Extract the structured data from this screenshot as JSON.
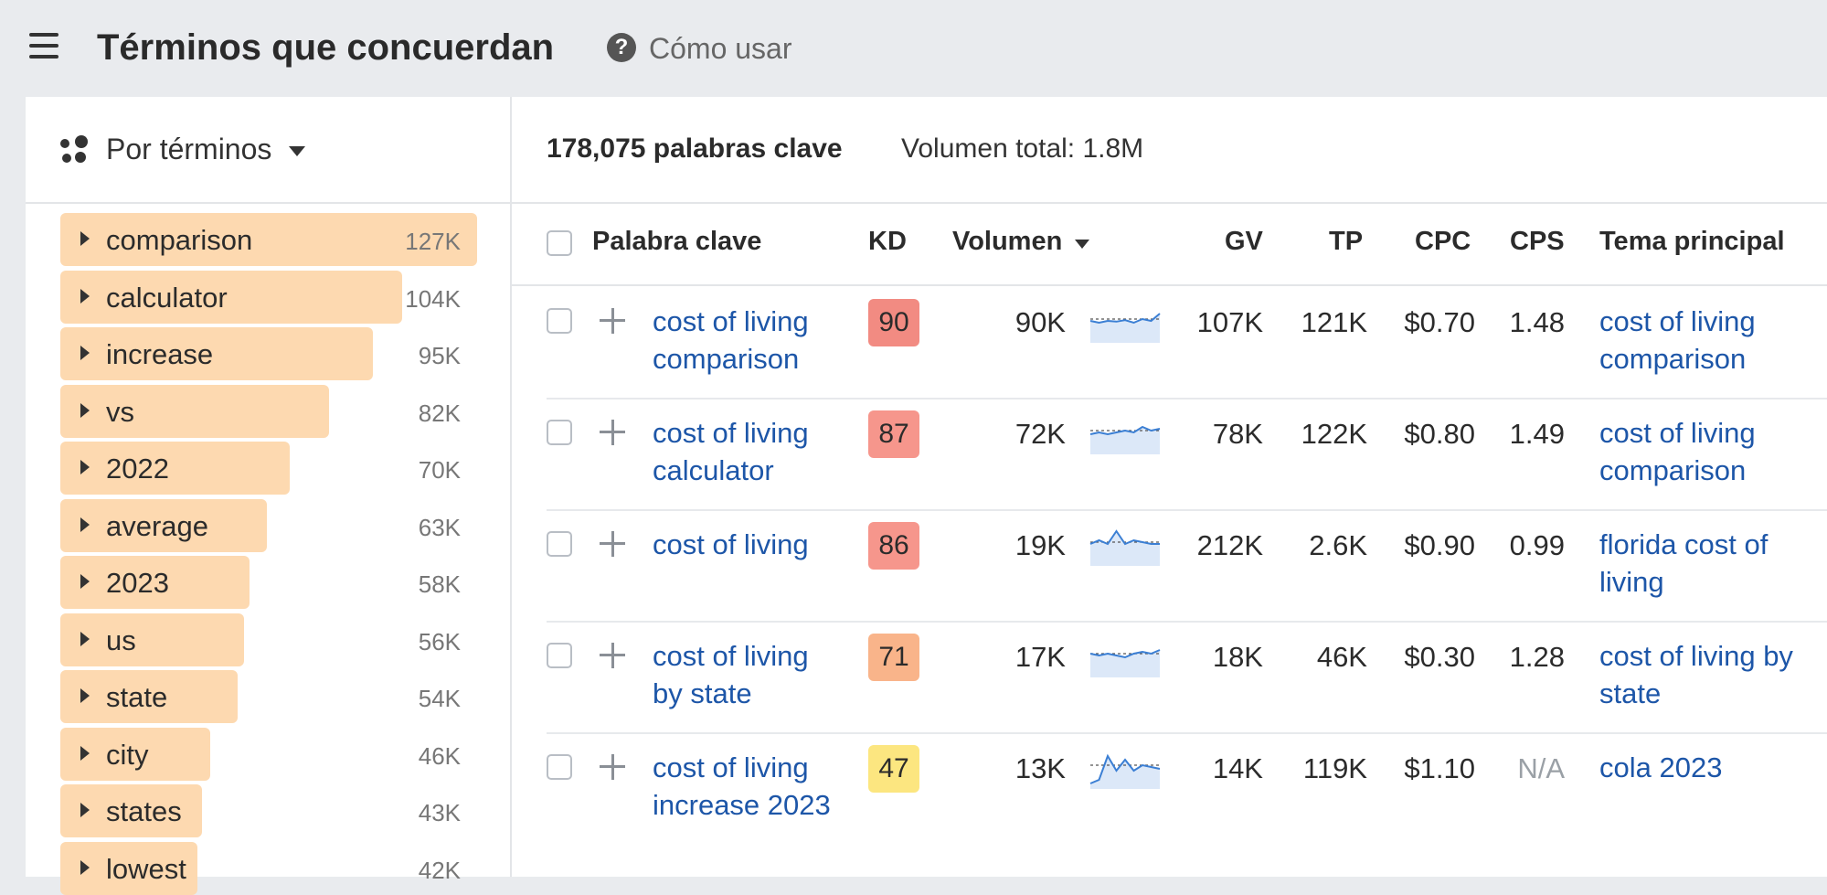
{
  "header": {
    "title": "Términos que concuerdan",
    "help_label": "Cómo usar"
  },
  "left_panel": {
    "group_by_label": "Por términos",
    "terms": [
      {
        "label": "comparison",
        "count": "127K",
        "fill": 1.0
      },
      {
        "label": "calculator",
        "count": "104K",
        "fill": 0.82
      },
      {
        "label": "increase",
        "count": "95K",
        "fill": 0.75
      },
      {
        "label": "vs",
        "count": "82K",
        "fill": 0.645
      },
      {
        "label": "2022",
        "count": "70K",
        "fill": 0.55
      },
      {
        "label": "average",
        "count": "63K",
        "fill": 0.495
      },
      {
        "label": "2023",
        "count": "58K",
        "fill": 0.455
      },
      {
        "label": "us",
        "count": "56K",
        "fill": 0.44
      },
      {
        "label": "state",
        "count": "54K",
        "fill": 0.425
      },
      {
        "label": "city",
        "count": "46K",
        "fill": 0.36
      },
      {
        "label": "states",
        "count": "43K",
        "fill": 0.34
      },
      {
        "label": "lowest",
        "count": "42K",
        "fill": 0.33
      }
    ]
  },
  "summary": {
    "keywords_count": "178,075 palabras clave",
    "total_volume": "Volumen total: 1.8M"
  },
  "table": {
    "headers": {
      "keyword": "Palabra clave",
      "kd": "KD",
      "volume": "Volumen",
      "gv": "GV",
      "tp": "TP",
      "cpc": "CPC",
      "cps": "CPS",
      "topic": "Tema principal"
    },
    "rows": [
      {
        "keyword": "cost of living comparison",
        "kd": "90",
        "kd_color": "#f28b82",
        "volume": "90K",
        "gv": "107K",
        "tp": "121K",
        "cpc": "$0.70",
        "cps": "1.48",
        "topic": "cost of living comparison",
        "trend": [
          0.5,
          0.55,
          0.5,
          0.52,
          0.48,
          0.55,
          0.45,
          0.5,
          0.3
        ]
      },
      {
        "keyword": "cost of living calculator",
        "kd": "87",
        "kd_color": "#f6968c",
        "volume": "72K",
        "gv": "78K",
        "tp": "122K",
        "cpc": "$0.80",
        "cps": "1.49",
        "topic": "cost of living comparison",
        "trend": [
          0.55,
          0.5,
          0.55,
          0.5,
          0.45,
          0.5,
          0.35,
          0.45,
          0.4
        ]
      },
      {
        "keyword": "cost of living",
        "kd": "86",
        "kd_color": "#f6968c",
        "volume": "19K",
        "gv": "212K",
        "tp": "2.6K",
        "cpc": "$0.90",
        "cps": "0.99",
        "topic": "florida cost of living",
        "trend": [
          0.5,
          0.4,
          0.5,
          0.15,
          0.5,
          0.4,
          0.45,
          0.5,
          0.5
        ]
      },
      {
        "keyword": "cost of living by state",
        "kd": "71",
        "kd_color": "#f9b48a",
        "volume": "17K",
        "gv": "18K",
        "tp": "46K",
        "cpc": "$0.30",
        "cps": "1.28",
        "topic": "cost of living by state",
        "trend": [
          0.45,
          0.5,
          0.45,
          0.5,
          0.55,
          0.45,
          0.4,
          0.45,
          0.35
        ]
      },
      {
        "keyword": "cost of living increase 2023",
        "kd": "47",
        "kd_color": "#fce680",
        "volume": "13K",
        "gv": "14K",
        "tp": "119K",
        "cpc": "$1.10",
        "cps": "N/A",
        "topic": "cola 2023",
        "trend": [
          0.95,
          0.85,
          0.2,
          0.6,
          0.3,
          0.6,
          0.45,
          0.5,
          0.55
        ]
      }
    ]
  }
}
